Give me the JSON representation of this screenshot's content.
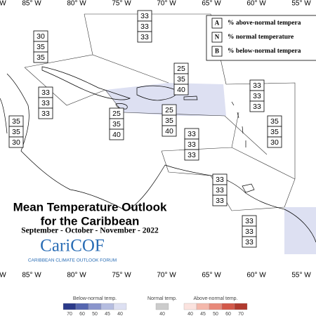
{
  "map": {
    "top_labels": [
      "W",
      "85° W",
      "80° W",
      "75° W",
      "70° W",
      "65° W",
      "60° W",
      "55° W"
    ],
    "bottom_labels": [
      "W",
      "85° W",
      "80° W",
      "75° W",
      "70° W",
      "65° W",
      "60° W",
      "55° W"
    ]
  },
  "key": [
    {
      "letter": "A",
      "text": "% above-normal tempera"
    },
    {
      "letter": "N",
      "text": "% normal temperature"
    },
    {
      "letter": "B",
      "text": "% below-normal tempera"
    }
  ],
  "regions": [
    {
      "values": [
        33,
        33,
        33
      ]
    },
    {
      "values": [
        30,
        35,
        35
      ]
    },
    {
      "values": [
        25,
        35,
        40
      ]
    },
    {
      "values": [
        33,
        33,
        33
      ]
    },
    {
      "values": [
        33,
        33,
        33
      ]
    },
    {
      "values": [
        25,
        35,
        40
      ]
    },
    {
      "values": [
        25,
        35,
        40
      ]
    },
    {
      "values": [
        35,
        35,
        30
      ]
    },
    {
      "values": [
        35,
        35,
        30
      ]
    },
    {
      "values": [
        33,
        33,
        33
      ]
    },
    {
      "values": [
        33,
        33,
        33
      ]
    },
    {
      "values": [
        33,
        33,
        33
      ]
    }
  ],
  "title": [
    "Mean Temperature Outlook",
    "for the Caribbean"
  ],
  "period": "September - October - November - 2022",
  "logo": {
    "name": "CariCOF",
    "tagline": "CARIBBEAN CLIMATE OUTLOOK FORUM"
  },
  "legend": {
    "below_label": "Below-normal temp.",
    "normal_label": "Normal temp.",
    "above_label": "Above-normal temp.",
    "below_ticks": [
      70,
      60,
      50,
      45,
      40
    ],
    "normal_ticks": [
      40
    ],
    "above_ticks": [
      40,
      45,
      50,
      60,
      70
    ]
  }
}
